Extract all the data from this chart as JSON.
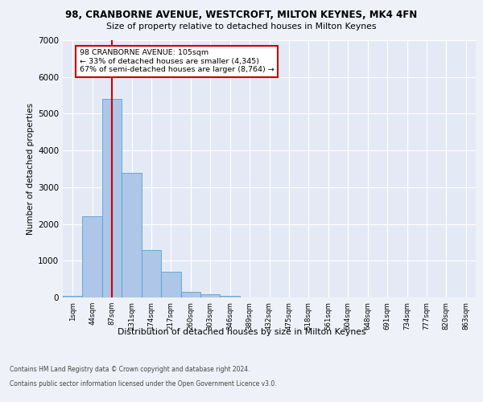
{
  "title_line1": "98, CRANBORNE AVENUE, WESTCROFT, MILTON KEYNES, MK4 4FN",
  "title_line2": "Size of property relative to detached houses in Milton Keynes",
  "xlabel": "Distribution of detached houses by size in Milton Keynes",
  "ylabel": "Number of detached properties",
  "categories": [
    "1sqm",
    "44sqm",
    "87sqm",
    "131sqm",
    "174sqm",
    "217sqm",
    "260sqm",
    "303sqm",
    "346sqm",
    "389sqm",
    "432sqm",
    "475sqm",
    "518sqm",
    "561sqm",
    "604sqm",
    "648sqm",
    "691sqm",
    "734sqm",
    "777sqm",
    "820sqm",
    "863sqm"
  ],
  "values": [
    50,
    2200,
    5400,
    3400,
    1300,
    700,
    150,
    90,
    50,
    5,
    2,
    1,
    0,
    0,
    0,
    0,
    0,
    0,
    0,
    0,
    0
  ],
  "bar_color": "#aec6e8",
  "bar_edge_color": "#5a9fd4",
  "ylim": [
    0,
    7000
  ],
  "yticks": [
    0,
    1000,
    2000,
    3000,
    4000,
    5000,
    6000,
    7000
  ],
  "vline_bar_index": 2,
  "annotation_text_line1": "98 CRANBORNE AVENUE: 105sqm",
  "annotation_text_line2": "← 33% of detached houses are smaller (4,345)",
  "annotation_text_line3": "67% of semi-detached houses are larger (8,764) →",
  "footer_line1": "Contains HM Land Registry data © Crown copyright and database right 2024.",
  "footer_line2": "Contains public sector information licensed under the Open Government Licence v3.0.",
  "background_color": "#eef2f8",
  "plot_bg_color": "#e4eaf5",
  "grid_color": "#ffffff",
  "vline_color": "#cc0000",
  "annotation_box_edge_color": "#cc0000"
}
